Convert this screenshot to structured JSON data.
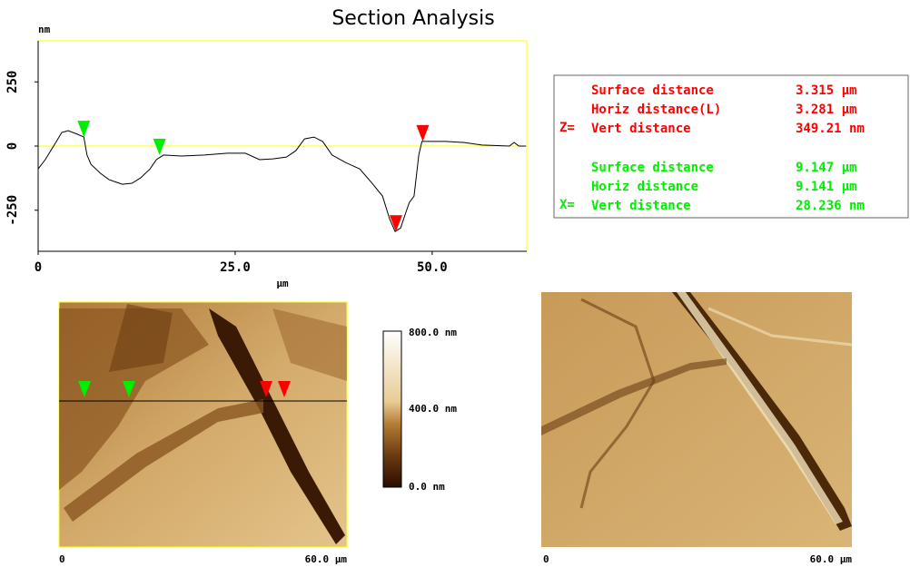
{
  "chart_data": {
    "type": "line",
    "title": "Section Analysis",
    "y_unit": "nm",
    "x_label": "µm",
    "x": [
      0,
      0.9,
      2.1,
      3.0,
      3.8,
      5.0,
      5.8,
      6.2,
      6.7,
      7.9,
      9.0,
      10.7,
      11.9,
      13.0,
      14.2,
      15.0,
      15.9,
      18.2,
      21.1,
      24.0,
      26.3,
      28.1,
      29.8,
      31.5,
      32.7,
      33.8,
      35.0,
      36.1,
      37.3,
      39.0,
      40.8,
      42.3,
      43.7,
      44.6,
      45.3,
      46.0,
      46.7,
      47.1,
      47.7,
      48.3,
      48.7,
      49.4,
      51.7,
      54.0,
      56.3,
      59.8,
      60.4,
      61.0,
      61.9
    ],
    "values": [
      -89,
      -53,
      7,
      53,
      60,
      46,
      35,
      -35,
      -71,
      -106,
      -131,
      -149,
      -145,
      -124,
      -89,
      -53,
      -35,
      -39,
      -35,
      -28,
      -28,
      -53,
      -50,
      -43,
      -18,
      28,
      35,
      18,
      -35,
      -64,
      -89,
      -142,
      -195,
      -284,
      -333,
      -319,
      -255,
      -220,
      -195,
      -35,
      18,
      18,
      18,
      14,
      4,
      0,
      14,
      0,
      0
    ],
    "color": "#000000",
    "zero_line_color": "#ffff00",
    "plot_border_color": "#ffff00",
    "xlim": [
      0,
      62
    ],
    "ylim": [
      -410,
      410
    ],
    "xticks": [
      0,
      {
        "value": 25,
        "label": "25.0"
      },
      {
        "value": 50,
        "label": "50.0"
      }
    ],
    "yticks": [
      -250,
      0,
      250
    ],
    "markers": [
      {
        "x": 5.8,
        "y": 35,
        "color": "#00ee00"
      },
      {
        "x": 15.4,
        "y": -35,
        "color": "#00ee00"
      },
      {
        "x": 45.4,
        "y": -333,
        "color": "#ff0000"
      },
      {
        "x": 48.8,
        "y": 18,
        "color": "#ff0000"
      }
    ]
  },
  "info_panel": {
    "groups": [
      {
        "prefix": "Z=",
        "color": "#ff0000",
        "rows": [
          [
            "Surface distance",
            "3.315 µm"
          ],
          [
            "Horiz distance(L)",
            "3.281 µm"
          ],
          [
            "Vert distance",
            "349.21 nm"
          ]
        ]
      },
      {
        "prefix": "X=",
        "color": "#00ee00",
        "rows": [
          [
            "Surface distance",
            "9.147 µm"
          ],
          [
            "Horiz distance",
            "9.141 µm"
          ],
          [
            "Vert distance",
            "28.236 nm"
          ]
        ]
      }
    ]
  },
  "height_image": {
    "colorbar_labels": [
      "800.0 nm",
      "400.0 nm",
      "0.0 nm"
    ],
    "axis_labels": [
      "0",
      "60.0 µm"
    ]
  },
  "amplitude_image": {
    "axis_labels": [
      "0",
      "60.0 µm"
    ]
  }
}
